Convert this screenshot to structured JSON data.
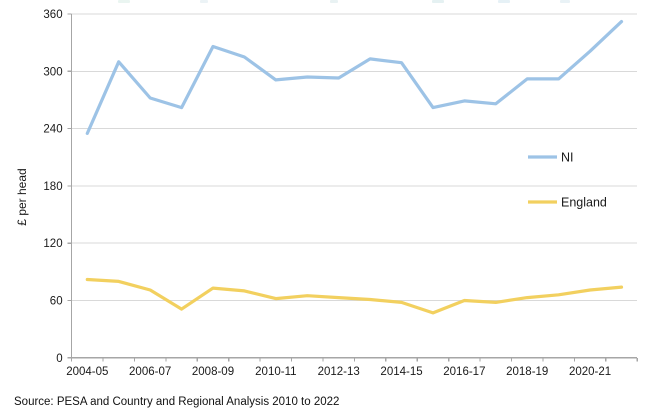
{
  "figure": {
    "source_note": "Source: PESA and Country and Regional Analysis 2010 to 2022"
  },
  "chart_data": {
    "type": "line",
    "title": "",
    "ylabel": "£ per head",
    "xlabel": "",
    "ylim": [
      0,
      360
    ],
    "yticks": [
      0,
      60,
      120,
      180,
      240,
      300,
      360
    ],
    "grid": "horizontal",
    "legend_position": "right-middle",
    "categories": [
      "2004-05",
      "2005-06",
      "2006-07",
      "2007-08",
      "2008-09",
      "2009-10",
      "2010-11",
      "2011-12",
      "2012-13",
      "2013-14",
      "2014-15",
      "2015-16",
      "2016-17",
      "2017-18",
      "2018-19",
      "2019-20",
      "2020-21",
      "2021-22"
    ],
    "x_tick_labels_shown": [
      "2004-05",
      "2006-07",
      "2008-09",
      "2010-11",
      "2012-13",
      "2014-15",
      "2016-17",
      "2018-19",
      "2020-21"
    ],
    "series": [
      {
        "name": "NI",
        "color": "#9DC3E6",
        "values": [
          235,
          310,
          272,
          262,
          326,
          315,
          291,
          294,
          293,
          313,
          309,
          262,
          269,
          266,
          292,
          292,
          321,
          352
        ]
      },
      {
        "name": "England",
        "color": "#F2D05F",
        "values": [
          82,
          80,
          71,
          51,
          73,
          70,
          62,
          65,
          63,
          61,
          58,
          47,
          60,
          58,
          63,
          66,
          71,
          74
        ]
      }
    ],
    "colors": {
      "axis": "#A6A6A6",
      "gridline": "#D9D9D9",
      "text": "#1A1A1A"
    }
  }
}
